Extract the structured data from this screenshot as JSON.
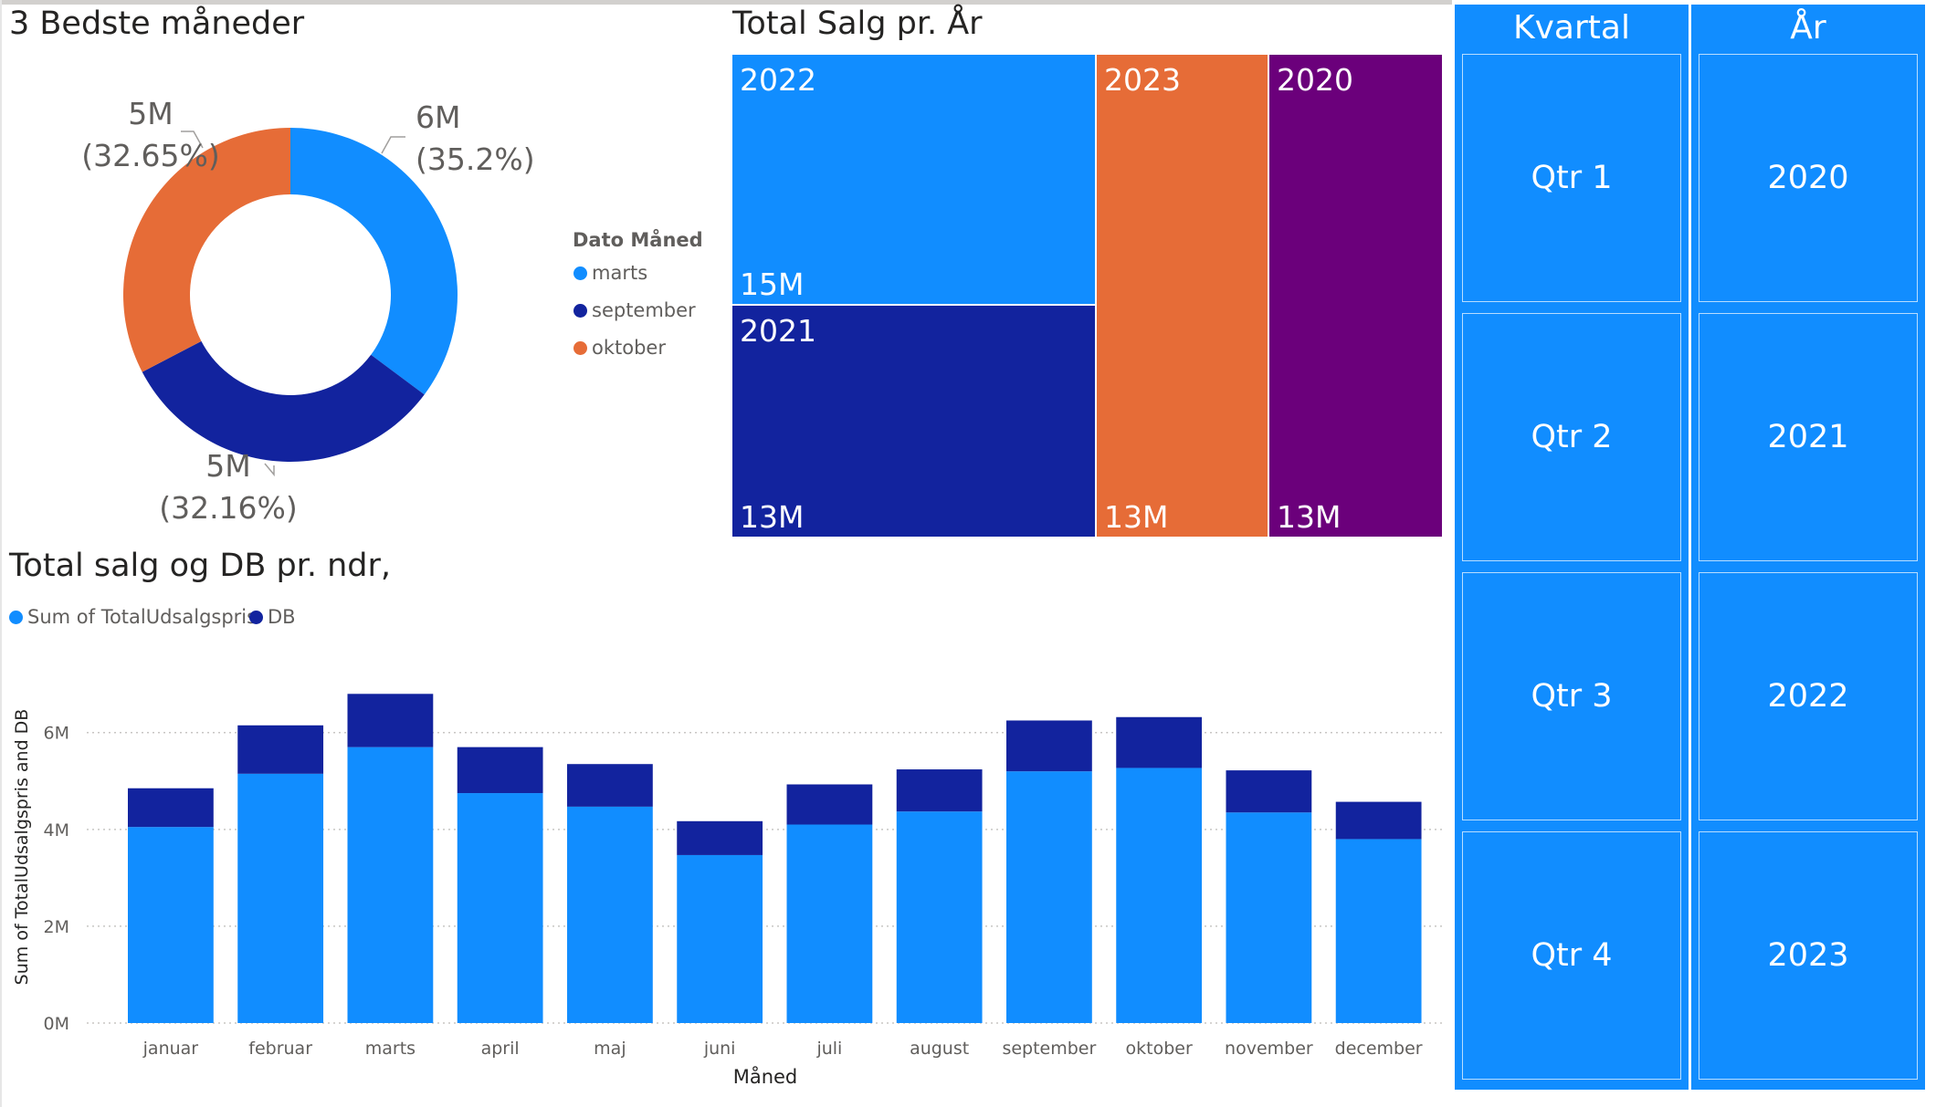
{
  "donut": {
    "title": "3 Bedste måneder",
    "legend_title": "Dato Måned",
    "legend": [
      {
        "label": "marts",
        "color": "#118dff"
      },
      {
        "label": "september",
        "color": "#12239e"
      },
      {
        "label": "oktober",
        "color": "#e66c37"
      }
    ],
    "labels": [
      {
        "value": "6M",
        "pct": "(35.2%)"
      },
      {
        "value": "5M",
        "pct": "(32.16%)"
      },
      {
        "value": "5M",
        "pct": "(32.65%)"
      }
    ]
  },
  "treemap": {
    "title": "Total Salg pr. År",
    "tiles": [
      {
        "year": "2022",
        "value": "15M",
        "color": "#118dff"
      },
      {
        "year": "2021",
        "value": "13M",
        "color": "#12239e"
      },
      {
        "year": "2023",
        "value": "13M",
        "color": "#e66c37"
      },
      {
        "year": "2020",
        "value": "13M",
        "color": "#6b007b"
      }
    ]
  },
  "bars": {
    "title": "Total salg og DB pr. ndr,",
    "legend": [
      {
        "label": "Sum of TotalUdsalgspris",
        "color": "#118dff"
      },
      {
        "label": "DB",
        "color": "#12239e"
      }
    ]
  },
  "slicers": {
    "kvartal": {
      "title": "Kvartal",
      "items": [
        "Qtr 1",
        "Qtr 2",
        "Qtr 3",
        "Qtr 4"
      ]
    },
    "aar": {
      "title": "År",
      "items": [
        "2020",
        "2021",
        "2022",
        "2023"
      ]
    }
  },
  "chart_data": [
    {
      "type": "pie",
      "title": "3 Bedste måneder",
      "legend_title": "Dato Måned",
      "categories": [
        "marts",
        "september",
        "oktober"
      ],
      "values": [
        35.2,
        32.16,
        32.65
      ],
      "display_values": [
        "6M",
        "5M",
        "5M"
      ],
      "colors": [
        "#118dff",
        "#12239e",
        "#e66c37"
      ],
      "legend_position": "right"
    },
    {
      "type": "bar",
      "title": "Total salg og DB pr. ndr,",
      "xlabel": "Måned",
      "ylabel": "Sum of TotalUdsalgspris and DB",
      "categories": [
        "januar",
        "februar",
        "marts",
        "april",
        "maj",
        "juni",
        "juli",
        "august",
        "september",
        "oktober",
        "november",
        "december"
      ],
      "series": [
        {
          "name": "Sum of TotalUdsalgspris",
          "color": "#118dff",
          "values": [
            4.05,
            5.15,
            5.7,
            4.75,
            4.47,
            3.47,
            4.1,
            4.37,
            5.2,
            5.27,
            4.35,
            3.8
          ]
        },
        {
          "name": "DB",
          "color": "#12239e",
          "values": [
            0.8,
            1.0,
            1.1,
            0.95,
            0.88,
            0.7,
            0.83,
            0.87,
            1.05,
            1.05,
            0.87,
            0.77
          ]
        }
      ],
      "stacked": true,
      "ylim": [
        0,
        6.9
      ],
      "yticks": [
        "0M",
        "2M",
        "4M",
        "6M"
      ],
      "ytick_values": [
        0,
        2,
        4,
        6
      ],
      "grid": true,
      "legend_position": "top-left"
    }
  ]
}
